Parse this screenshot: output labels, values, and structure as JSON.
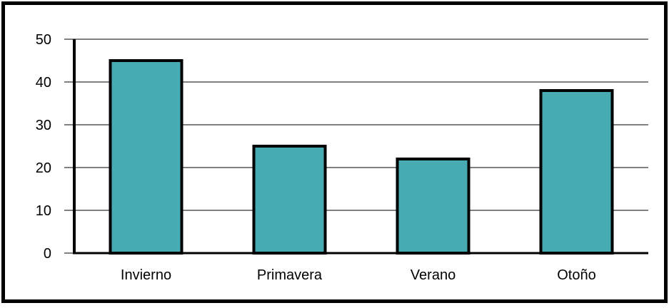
{
  "chart_data": {
    "type": "bar",
    "categories": [
      "Invierno",
      "Primavera",
      "Verano",
      "Otoño"
    ],
    "values": [
      45,
      25,
      22,
      38
    ],
    "title": "",
    "xlabel": "",
    "ylabel": "",
    "ylim": [
      0,
      50
    ],
    "yticks": [
      "0",
      "10",
      "20",
      "30",
      "40",
      "50"
    ],
    "grid": "horizontal",
    "legend": "none",
    "colors": {
      "bar_fill": "#47abb3",
      "bar_outline": "#000000",
      "grid": "#000000",
      "frame": "#000000",
      "background": "#ffffff"
    }
  }
}
